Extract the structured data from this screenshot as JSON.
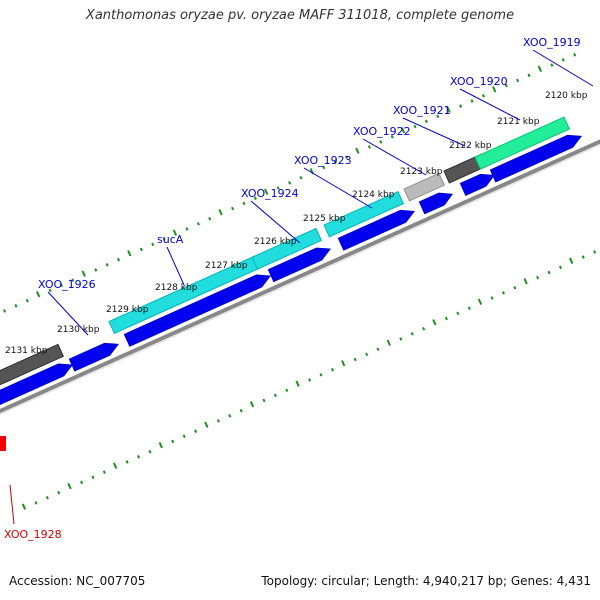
{
  "title": "Xanthomonas oryzae pv. oryzae MAFF 311018, complete genome",
  "footer": {
    "accession": "Accession: NC_007705",
    "summary": "Topology: circular; Length: 4,940,217 bp; Genes: 4,431"
  },
  "colors": {
    "forward_cds": "#0000ee",
    "reverse_cyan": "#22dddd",
    "reverse_gray": "#555555",
    "reverse_light": "#bbbbbb",
    "reverse_green": "#22ee99",
    "highlight": "#ff0000",
    "label_blue": "#0000cc",
    "label_red": "#cc0000",
    "tick_green": "#1f8f1f",
    "backbone": "#888888"
  },
  "ticks": [
    "2120 kbp",
    "2121 kbp",
    "2122 kbp",
    "2123 kbp",
    "2124 kbp",
    "2125 kbp",
    "2126 kbp",
    "2127 kbp",
    "2128 kbp",
    "2129 kbp",
    "2130 kbp",
    "2131 kbp"
  ],
  "gene_labels": [
    {
      "text": "XOO_1919",
      "color": "label_blue"
    },
    {
      "text": "XOO_1920",
      "color": "label_blue"
    },
    {
      "text": "XOO_1921",
      "color": "label_blue"
    },
    {
      "text": "XOO_1922",
      "color": "label_blue"
    },
    {
      "text": "XOO_1923",
      "color": "label_blue"
    },
    {
      "text": "XOO_1924",
      "color": "label_blue"
    },
    {
      "text": "sucA",
      "color": "label_blue"
    },
    {
      "text": "XOO_1926",
      "color": "label_blue"
    },
    {
      "text": "XOO_1928",
      "color": "label_red"
    }
  ]
}
